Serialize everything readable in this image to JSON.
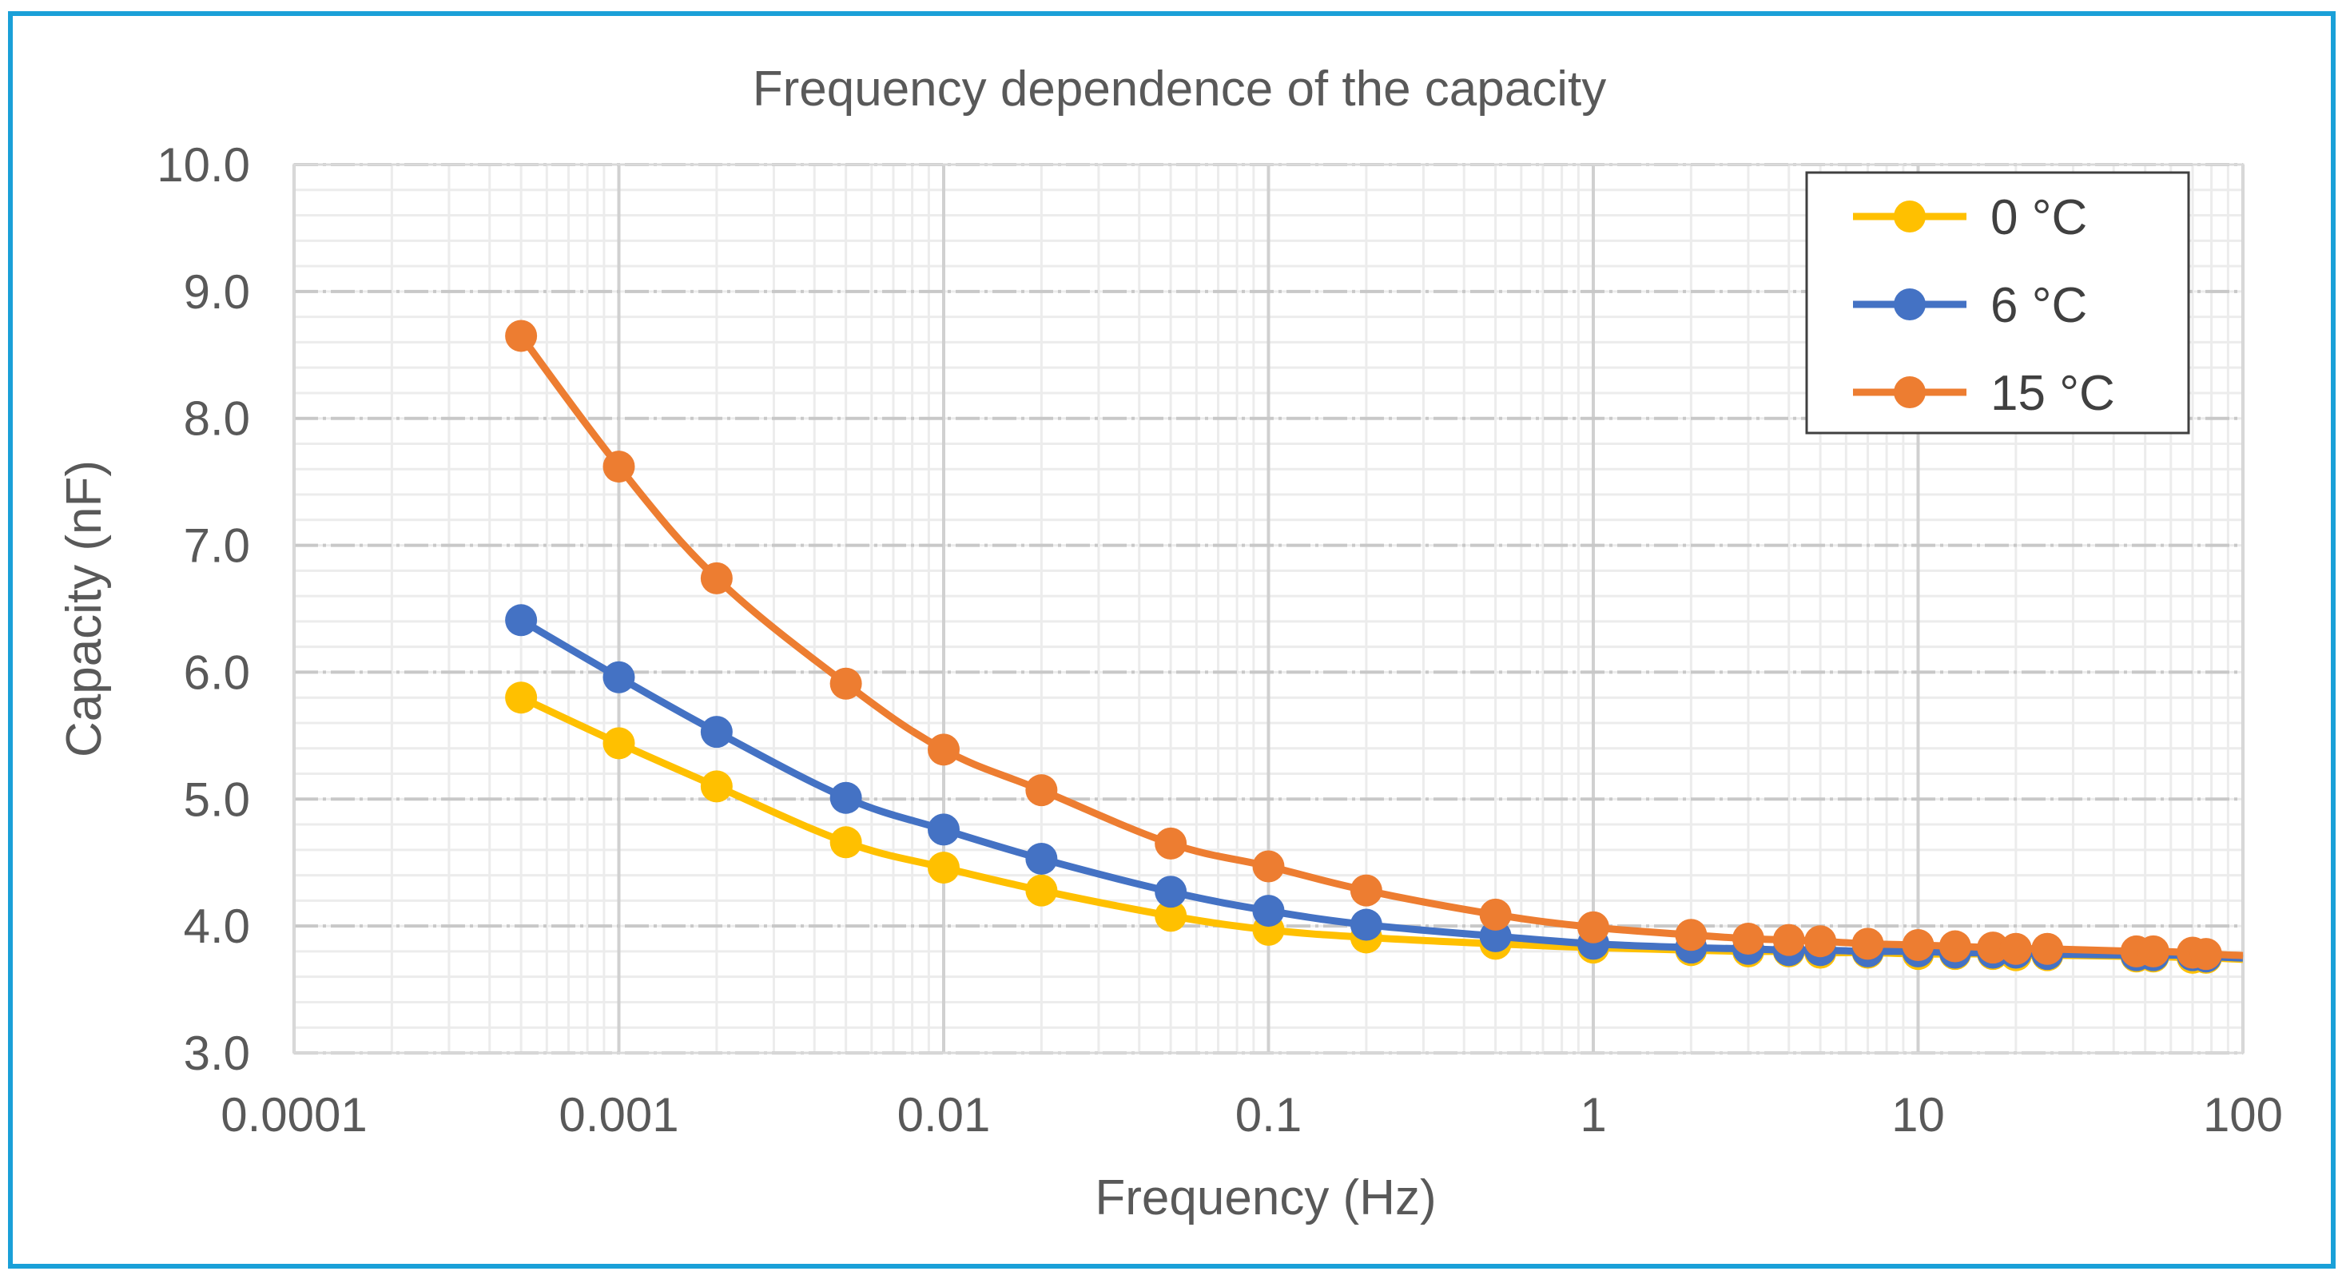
{
  "chart_data": {
    "type": "line",
    "title": "Frequency dependence of the capacity",
    "xlabel": "Frequency (Hz)",
    "ylabel": "Capacity (nF)",
    "xscale": "log",
    "xlim": [
      0.0001,
      100
    ],
    "ylim": [
      3.0,
      10.0
    ],
    "x_tick_labels": [
      "0.0001",
      "0.001",
      "0.01",
      "0.1",
      "1",
      "10",
      "100"
    ],
    "y_tick_labels": [
      "3.0",
      "4.0",
      "5.0",
      "6.0",
      "7.0",
      "8.0",
      "9.0",
      "10.0"
    ],
    "grid": true,
    "legend_position": "top-right",
    "x": [
      0.0005,
      0.001,
      0.002,
      0.005,
      0.01,
      0.02,
      0.05,
      0.1,
      0.2,
      0.5,
      1,
      2,
      3,
      4,
      5,
      7,
      10,
      13,
      17,
      20,
      25,
      47,
      53,
      70,
      77
    ],
    "series": [
      {
        "name": "0 °C",
        "color": "#ffc000",
        "values": [
          5.8,
          5.44,
          5.1,
          4.66,
          4.46,
          4.28,
          4.08,
          3.97,
          3.91,
          3.86,
          3.83,
          3.81,
          3.8,
          3.8,
          3.79,
          3.79,
          3.78,
          3.78,
          3.78,
          3.77,
          3.77,
          3.76,
          3.76,
          3.75,
          3.75
        ]
      },
      {
        "name": "6 °C",
        "color": "#4472c4",
        "values": [
          6.41,
          5.96,
          5.53,
          5.01,
          4.76,
          4.53,
          4.27,
          4.12,
          4.01,
          3.92,
          3.86,
          3.83,
          3.82,
          3.81,
          3.81,
          3.8,
          3.8,
          3.79,
          3.79,
          3.79,
          3.78,
          3.77,
          3.77,
          3.77,
          3.76
        ]
      },
      {
        "name": "15 °C",
        "color": "#ed7d31",
        "values": [
          8.65,
          7.62,
          6.74,
          5.91,
          5.39,
          5.07,
          4.65,
          4.47,
          4.28,
          4.09,
          3.99,
          3.93,
          3.9,
          3.89,
          3.88,
          3.86,
          3.85,
          3.84,
          3.83,
          3.82,
          3.82,
          3.8,
          3.8,
          3.79,
          3.78
        ]
      }
    ]
  }
}
